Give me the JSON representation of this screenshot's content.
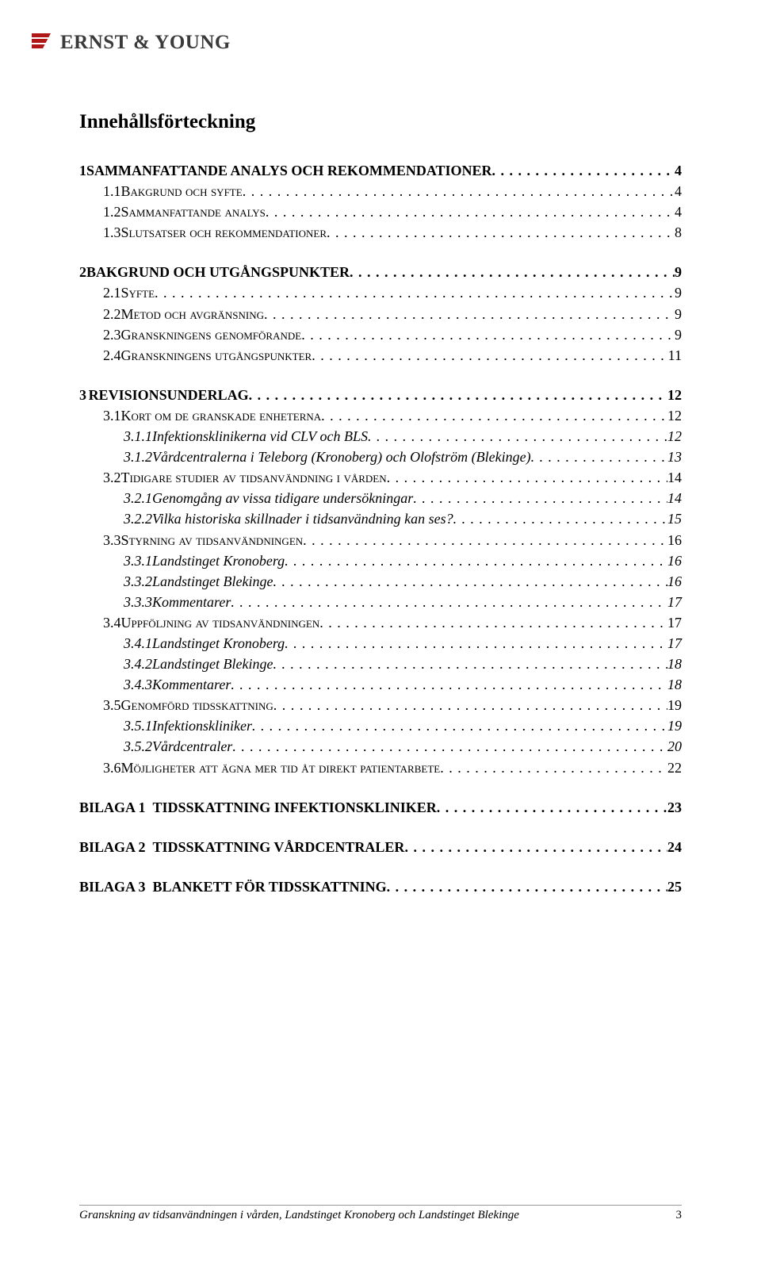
{
  "logo_text": "ERNST & YOUNG",
  "heading": "Innehållsförteckning",
  "toc": [
    {
      "level": 1,
      "num": "1",
      "text": "SAMMANFATTANDE ANALYS OCH REKOMMENDATIONER",
      "page": "4"
    },
    {
      "level": 2,
      "num": "1.1",
      "text": "Bakgrund och syfte",
      "page": "4"
    },
    {
      "level": 2,
      "num": "1.2",
      "text": "Sammanfattande analys",
      "page": "4"
    },
    {
      "level": 2,
      "num": "1.3",
      "text": "Slutsatser och rekommendationer",
      "page": "8"
    },
    {
      "level": 1,
      "num": "2",
      "text": "BAKGRUND OCH UTGÅNGSPUNKTER",
      "page": "9"
    },
    {
      "level": 2,
      "num": "2.1",
      "text": "Syfte",
      "page": "9"
    },
    {
      "level": 2,
      "num": "2.2",
      "text": "Metod och avgränsning",
      "page": "9"
    },
    {
      "level": 2,
      "num": "2.3",
      "text": "Granskningens genomförande",
      "page": "9"
    },
    {
      "level": 2,
      "num": "2.4",
      "text": "Granskningens utgångspunkter",
      "page": "11"
    },
    {
      "level": 1,
      "num": "3",
      "text": "REVISIONSUNDERLAG",
      "page": "12"
    },
    {
      "level": 2,
      "num": "3.1",
      "text": "Kort om de granskade enheterna",
      "page": "12"
    },
    {
      "level": 3,
      "num": "3.1.1",
      "text": "Infektionsklinikerna vid CLV och BLS",
      "page": "12"
    },
    {
      "level": 3,
      "num": "3.1.2",
      "text": "Vårdcentralerna i Teleborg (Kronoberg) och Olofström (Blekinge)",
      "page": "13"
    },
    {
      "level": 2,
      "num": "3.2",
      "text": "Tidigare studier av tidsanvändning i vården",
      "page": "14"
    },
    {
      "level": 3,
      "num": "3.2.1",
      "text": "Genomgång av vissa tidigare undersökningar",
      "page": "14"
    },
    {
      "level": 3,
      "num": "3.2.2",
      "text": "Vilka historiska skillnader i tidsanvändning kan ses?",
      "page": "15"
    },
    {
      "level": 2,
      "num": "3.3",
      "text": "Styrning av tidsanvändningen",
      "page": "16"
    },
    {
      "level": 3,
      "num": "3.3.1",
      "text": "Landstinget Kronoberg",
      "page": "16"
    },
    {
      "level": 3,
      "num": "3.3.2",
      "text": "Landstinget Blekinge",
      "page": "16"
    },
    {
      "level": 3,
      "num": "3.3.3",
      "text": "Kommentarer",
      "page": "17"
    },
    {
      "level": 2,
      "num": "3.4",
      "text": "Uppföljning av tidsanvändningen",
      "page": "17"
    },
    {
      "level": 3,
      "num": "3.4.1",
      "text": "Landstinget Kronoberg",
      "page": "17"
    },
    {
      "level": 3,
      "num": "3.4.2",
      "text": "Landstinget Blekinge",
      "page": "18"
    },
    {
      "level": 3,
      "num": "3.4.3",
      "text": "Kommentarer",
      "page": "18"
    },
    {
      "level": 2,
      "num": "3.5",
      "text": "Genomförd tidsskattning",
      "page": "19"
    },
    {
      "level": 3,
      "num": "3.5.1",
      "text": "Infektionskliniker",
      "page": "19"
    },
    {
      "level": 3,
      "num": "3.5.2",
      "text": "Vårdcentraler",
      "page": "20"
    },
    {
      "level": 2,
      "num": "3.6",
      "text": "Möjligheter att ägna mer tid åt direkt patientarbete",
      "page": "22"
    },
    {
      "level": 1,
      "num": "BILAGA 1",
      "text": "TIDSSKATTNING INFEKTIONSKLINIKER",
      "page": "23",
      "bilaga": true
    },
    {
      "level": 1,
      "num": "BILAGA 2",
      "text": "TIDSSKATTNING VÅRDCENTRALER",
      "page": "24",
      "bilaga": true
    },
    {
      "level": 1,
      "num": "BILAGA 3",
      "text": "BLANKETT FÖR TIDSSKATTNING",
      "page": "25",
      "bilaga": true
    }
  ],
  "footer_text": "Granskning av tidsanvändningen i vården, Landstinget Kronoberg och Landstinget Blekinge",
  "footer_page": "3"
}
